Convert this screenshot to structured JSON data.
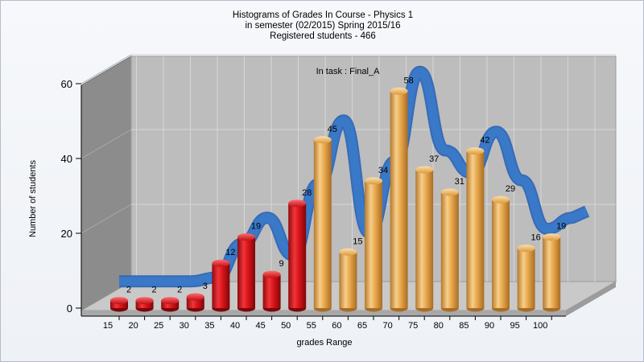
{
  "chart_data": {
    "type": "bar",
    "title": [
      "Histograms of Grades  In Course - Physics 1",
      "in semester  (02/2015) Spring 2015/16",
      "Registered students - 466"
    ],
    "annotation": "In task : Final_A",
    "xlabel": "grades Range",
    "ylabel": "Number of students",
    "ylim": [
      0,
      60
    ],
    "yticks": [
      "0",
      "20",
      "40",
      "60"
    ],
    "categories": [
      "15",
      "20",
      "25",
      "30",
      "35",
      "40",
      "45",
      "50",
      "55",
      "60",
      "65",
      "70",
      "75",
      "80",
      "85",
      "90",
      "95",
      "100"
    ],
    "values": [
      2,
      2,
      2,
      3,
      12,
      19,
      9,
      28,
      45,
      15,
      34,
      58,
      37,
      31,
      42,
      29,
      16,
      19
    ],
    "labels": [
      "2",
      "2",
      "2",
      "3",
      "12",
      "19",
      "9",
      "28",
      "45",
      "15",
      "34",
      "58",
      "37",
      "31",
      "42",
      "29",
      "16",
      "19"
    ],
    "bar_colors": [
      "red",
      "red",
      "red",
      "red",
      "red",
      "red",
      "red",
      "red",
      "orange",
      "orange",
      "orange",
      "orange",
      "orange",
      "orange",
      "orange",
      "orange",
      "orange",
      "orange"
    ],
    "smoothed_line": {
      "color": "#3a78c8"
    },
    "grid": true,
    "colors": {
      "red": "#d8141a",
      "orange": "#e8a74c",
      "wall": "#8c8c8c",
      "floor": "#c9c9c9",
      "back": "#bdbdbd"
    }
  }
}
